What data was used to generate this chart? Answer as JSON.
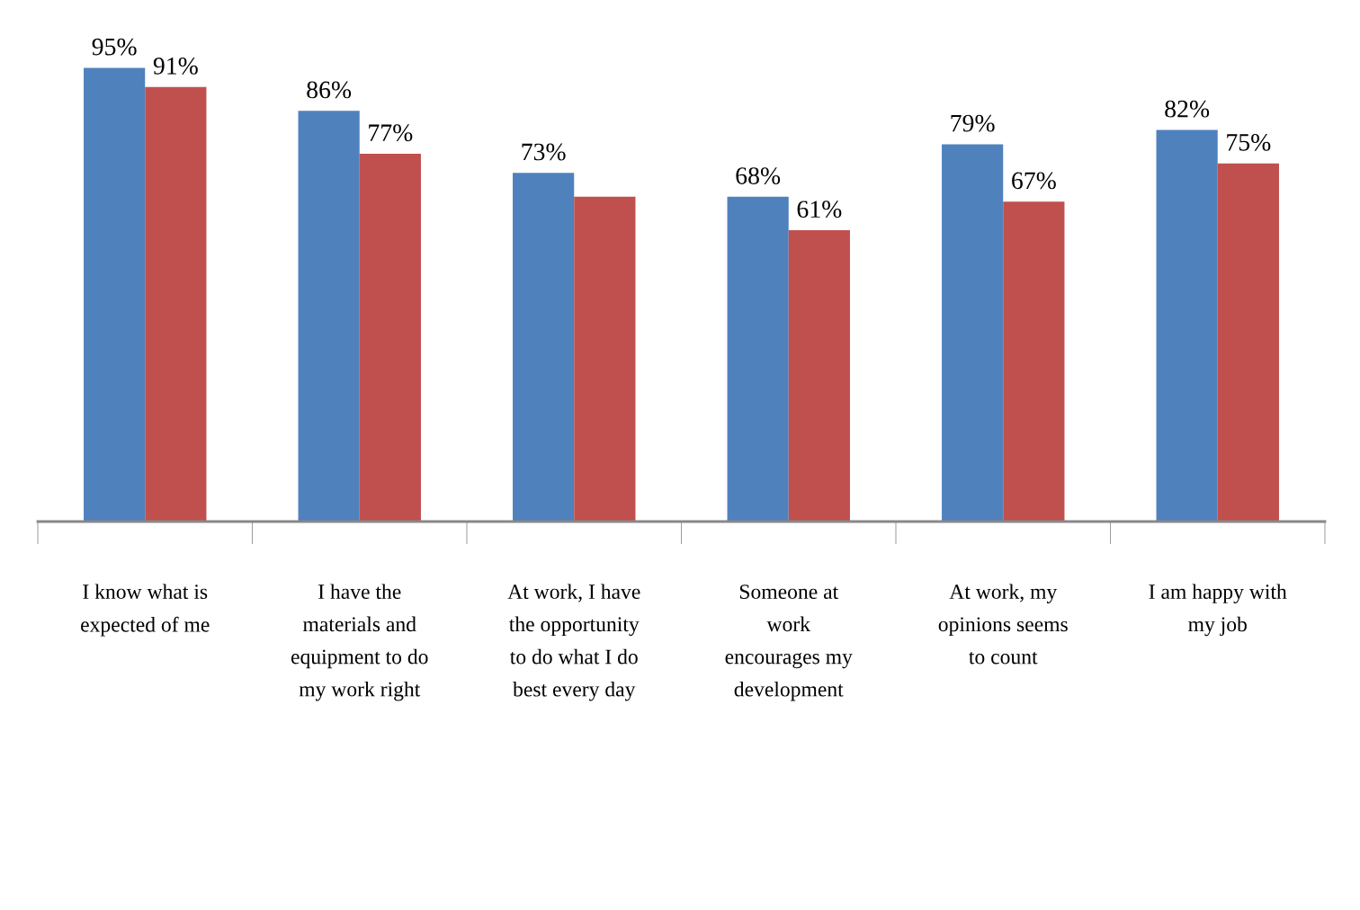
{
  "chart_data": {
    "type": "bar",
    "categories": [
      "I know what is\nexpected of me",
      "I have the\nmaterials and\nequipment to do\nmy work right",
      "At work, I have\nthe opportunity\nto do what I do\nbest every day",
      "Someone at\nwork\nencourages my\ndevelopment",
      "At work, my\nopinions seems\nto count",
      "I am happy with\nmy job"
    ],
    "series": [
      {
        "color": "#4f81bd",
        "values": [
          95,
          86,
          73,
          68,
          79,
          82
        ],
        "value_labels": [
          "95%",
          "86%",
          "73%",
          "68%",
          "79%",
          "82%"
        ]
      },
      {
        "color": "#c0504d",
        "values": [
          91,
          77,
          68,
          61,
          67,
          75
        ],
        "value_labels": [
          "91%",
          "77%",
          null,
          "61%",
          "67%",
          "75%"
        ]
      }
    ],
    "grid": false,
    "legend": false
  }
}
